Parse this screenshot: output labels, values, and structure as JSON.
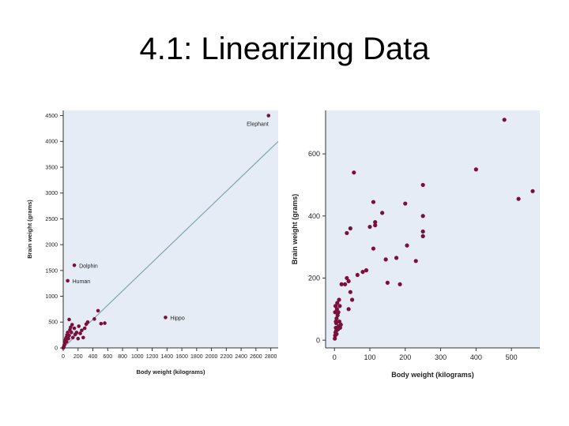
{
  "slide": {
    "title": "4.1: Linearizing Data"
  },
  "colors": {
    "plot_bg": "#e6ecf6",
    "point": "#7a0f3a",
    "line": "#7fa3ad",
    "axis": "#333333"
  },
  "chart_data": [
    {
      "type": "scatter",
      "title": "",
      "xlabel": "Body  weight (kilograms)",
      "ylabel": "Brain weight (grams)",
      "xlim": [
        0,
        2900
      ],
      "ylim": [
        0,
        4600
      ],
      "xticks": [
        0,
        200,
        400,
        600,
        800,
        1000,
        1200,
        1400,
        1600,
        1800,
        2000,
        2200,
        2400,
        2600,
        2800
      ],
      "yticks": [
        0,
        500,
        1000,
        1500,
        2000,
        2500,
        3000,
        3500,
        4000,
        4500
      ],
      "regression_line": {
        "x": [
          0,
          2900
        ],
        "y": [
          0,
          4000
        ]
      },
      "labeled_points": [
        {
          "label": "Elephant",
          "x": 2770,
          "y": 4500
        },
        {
          "label": "Dolphin",
          "x": 150,
          "y": 1600
        },
        {
          "label": "Human",
          "x": 60,
          "y": 1300
        },
        {
          "label": "Hippo",
          "x": 1380,
          "y": 590
        }
      ],
      "points": [
        [
          0,
          0
        ],
        [
          5,
          10
        ],
        [
          10,
          30
        ],
        [
          15,
          60
        ],
        [
          20,
          80
        ],
        [
          25,
          110
        ],
        [
          30,
          150
        ],
        [
          35,
          180
        ],
        [
          40,
          200
        ],
        [
          45,
          120
        ],
        [
          50,
          250
        ],
        [
          60,
          300
        ],
        [
          70,
          180
        ],
        [
          80,
          240
        ],
        [
          90,
          350
        ],
        [
          100,
          400
        ],
        [
          110,
          300
        ],
        [
          120,
          450
        ],
        [
          130,
          200
        ],
        [
          150,
          380
        ],
        [
          160,
          260
        ],
        [
          180,
          300
        ],
        [
          200,
          180
        ],
        [
          210,
          420
        ],
        [
          230,
          280
        ],
        [
          250,
          340
        ],
        [
          270,
          200
        ],
        [
          290,
          380
        ],
        [
          310,
          460
        ],
        [
          330,
          500
        ],
        [
          80,
          550
        ],
        [
          420,
          560
        ],
        [
          470,
          720
        ],
        [
          510,
          470
        ],
        [
          560,
          480
        ]
      ]
    },
    {
      "type": "scatter",
      "title": "",
      "xlabel": "Body weight (kilograms)",
      "ylabel": "Brain weight (grams)",
      "xlim": [
        -25,
        580
      ],
      "ylim": [
        -25,
        740
      ],
      "xticks": [
        0,
        100,
        200,
        300,
        400,
        500
      ],
      "yticks": [
        0,
        200,
        400,
        600
      ],
      "points": [
        [
          1,
          5
        ],
        [
          2,
          15
        ],
        [
          3,
          25
        ],
        [
          4,
          40
        ],
        [
          5,
          55
        ],
        [
          6,
          70
        ],
        [
          2,
          90
        ],
        [
          7,
          100
        ],
        [
          3,
          110
        ],
        [
          8,
          120
        ],
        [
          10,
          35
        ],
        [
          12,
          45
        ],
        [
          4,
          60
        ],
        [
          9,
          80
        ],
        [
          5,
          30
        ],
        [
          6,
          20
        ],
        [
          11,
          90
        ],
        [
          15,
          110
        ],
        [
          14,
          60
        ],
        [
          13,
          130
        ],
        [
          16,
          40
        ],
        [
          18,
          50
        ],
        [
          20,
          180
        ],
        [
          30,
          180
        ],
        [
          35,
          200
        ],
        [
          40,
          190
        ],
        [
          45,
          155
        ],
        [
          40,
          100
        ],
        [
          50,
          130
        ],
        [
          35,
          345
        ],
        [
          45,
          360
        ],
        [
          55,
          540
        ],
        [
          65,
          210
        ],
        [
          80,
          220
        ],
        [
          90,
          225
        ],
        [
          100,
          365
        ],
        [
          110,
          295
        ],
        [
          110,
          445
        ],
        [
          115,
          380
        ],
        [
          115,
          370
        ],
        [
          135,
          410
        ],
        [
          145,
          260
        ],
        [
          150,
          185
        ],
        [
          175,
          265
        ],
        [
          185,
          180
        ],
        [
          200,
          440
        ],
        [
          205,
          305
        ],
        [
          230,
          255
        ],
        [
          250,
          500
        ],
        [
          250,
          400
        ],
        [
          250,
          350
        ],
        [
          250,
          335
        ],
        [
          400,
          550
        ],
        [
          480,
          710
        ],
        [
          520,
          455
        ],
        [
          560,
          480
        ]
      ]
    }
  ]
}
